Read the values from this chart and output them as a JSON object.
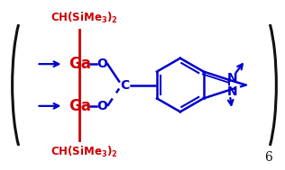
{
  "bg_color": "#ffffff",
  "red_color": "#cc0000",
  "blue_color": "#0000cc",
  "black_color": "#111111",
  "figure_size": [
    3.16,
    1.89
  ],
  "dpi": 100,
  "xlim": [
    0,
    3.16
  ],
  "ylim": [
    0,
    1.89
  ]
}
